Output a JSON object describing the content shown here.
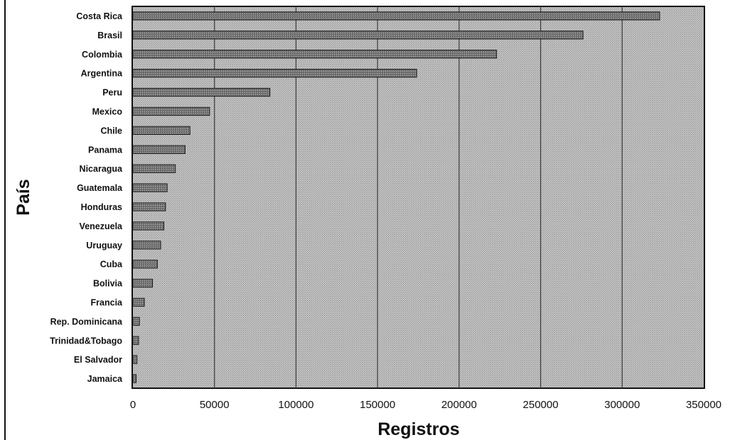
{
  "chart_data": {
    "type": "bar",
    "orientation": "horizontal",
    "title": "",
    "xlabel": "Registros",
    "ylabel": "País",
    "xlim": [
      0,
      350000
    ],
    "xticks": [
      "0",
      "50000",
      "100000",
      "150000",
      "200000",
      "250000",
      "300000",
      "350000"
    ],
    "grid": "vertical",
    "categories": [
      "Costa Rica",
      "Brasil",
      "Colombia",
      "Argentina",
      "Peru",
      "Mexico",
      "Chile",
      "Panama",
      "Nicaragua",
      "Guatemala",
      "Honduras",
      "Venezuela",
      "Uruguay",
      "Cuba",
      "Bolivia",
      "Francia",
      "Rep. Dominicana",
      "Trinidad&Tobago",
      "El Salvador",
      "Jamaica"
    ],
    "values": [
      323000,
      276000,
      223000,
      174000,
      84000,
      47000,
      35000,
      32000,
      26000,
      21000,
      20000,
      19000,
      17000,
      15000,
      12000,
      7000,
      4000,
      3500,
      2500,
      2000
    ],
    "colors": {
      "plot_bg": "#bdbdbd",
      "bar": "#7a7a7a",
      "bar_edge": "#1c1c1c",
      "grid": "#3a3a3a"
    }
  }
}
